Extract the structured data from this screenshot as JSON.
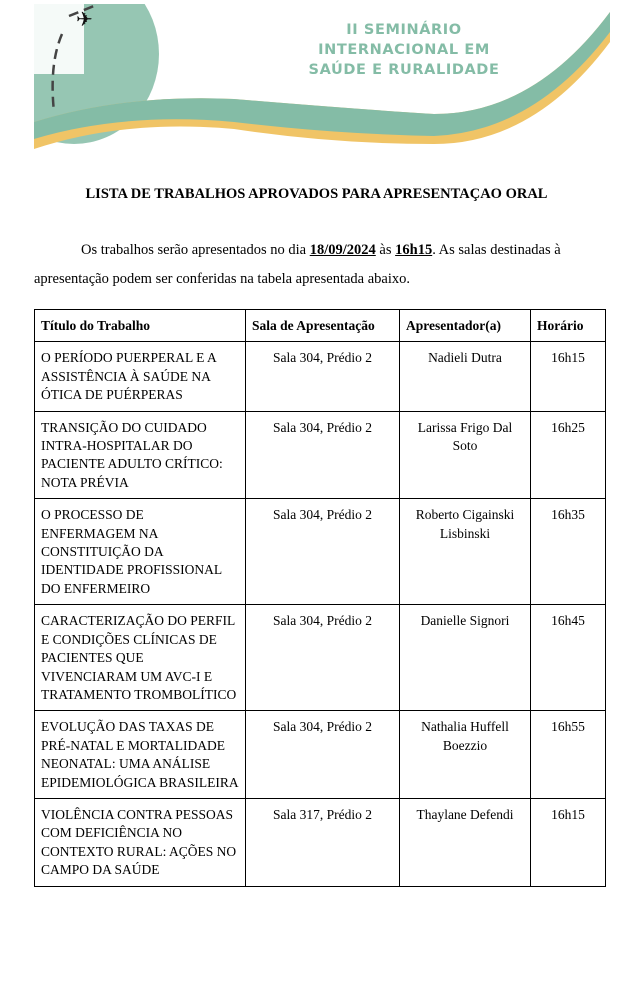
{
  "banner": {
    "title_lines": [
      "II SEMINÁRIO",
      "INTERNACIONAL EM",
      "SAÚDE E RURALIDADE"
    ],
    "colors": {
      "green": "#84bca6",
      "yellow": "#f0c466"
    },
    "icons": [
      "globe-map",
      "airplane-icon"
    ]
  },
  "document": {
    "title": "LISTA DE TRABALHOS APROVADOS PARA APRESENTAÇAO ORAL",
    "intro": {
      "part1": "Os trabalhos serão apresentados no dia ",
      "date": "18/09/2024",
      "part2": " às ",
      "time": "16h15",
      "part3": ". As salas destinadas à apresentação podem ser conferidas na tabela apresentada abaixo."
    }
  },
  "table": {
    "headers": [
      "Título do Trabalho",
      "Sala de Apresentação",
      "Apresentador(a)",
      "Horário"
    ],
    "rows": [
      {
        "title": "O PERÍODO PUERPERAL E A ASSISTÊNCIA À SAÚDE NA ÓTICA DE PUÉRPERAS",
        "room": "Sala 304, Prédio 2",
        "presenter": "Nadieli Dutra",
        "time": "16h15"
      },
      {
        "title": "TRANSIÇÃO DO CUIDADO INTRA-HOSPITALAR DO PACIENTE ADULTO CRÍTICO: NOTA PRÉVIA",
        "room": "Sala 304, Prédio 2",
        "presenter": "Larissa Frigo Dal Soto",
        "time": "16h25"
      },
      {
        "title": "O PROCESSO DE ENFERMAGEM NA CONSTITUIÇÃO DA IDENTIDADE PROFISSIONAL DO ENFERMEIRO",
        "room": "Sala 304, Prédio 2",
        "presenter": "Roberto Cigainski Lisbinski",
        "time": "16h35"
      },
      {
        "title": "CARACTERIZAÇÃO DO PERFIL E CONDIÇÕES CLÍNICAS DE PACIENTES QUE VIVENCIARAM UM AVC-I E TRATAMENTO TROMBOLÍTICO",
        "room": "Sala 304, Prédio 2",
        "presenter": "Danielle Signori",
        "time": "16h45"
      },
      {
        "title": "EVOLUÇÃO DAS TAXAS DE PRÉ-NATAL E MORTALIDADE NEONATAL: UMA ANÁLISE EPIDEMIOLÓGICA BRASILEIRA",
        "room": "Sala 304, Prédio 2",
        "presenter": "Nathalia Huffell Boezzio",
        "time": "16h55"
      },
      {
        "title": "VIOLÊNCIA CONTRA PESSOAS COM DEFICIÊNCIA NO CONTEXTO RURAL: AÇÕES NO CAMPO DA SAÚDE",
        "room": "Sala 317, Prédio 2",
        "presenter": "Thaylane Defendi",
        "time": "16h15"
      }
    ]
  }
}
